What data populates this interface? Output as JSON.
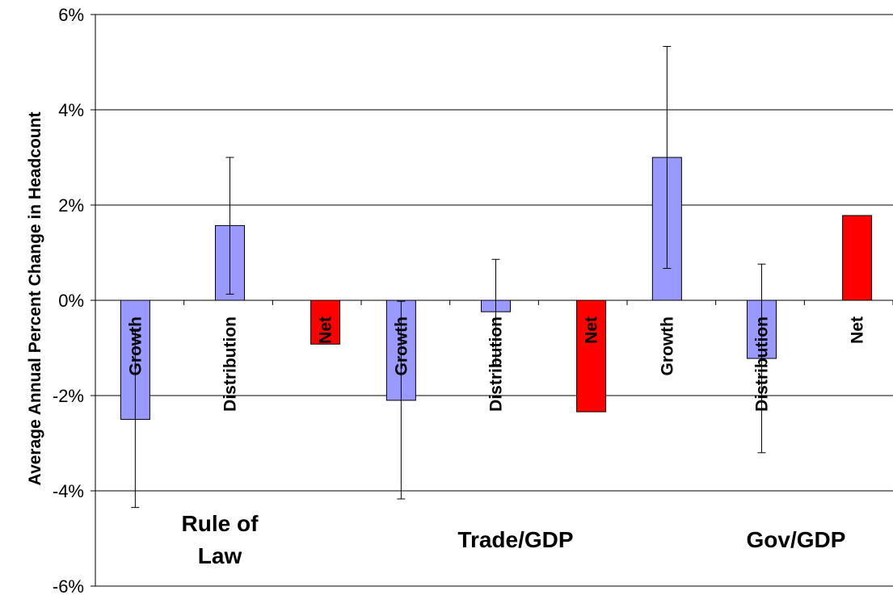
{
  "chart_data": {
    "type": "bar",
    "ylabel": "Average Annual Percent Change in Headcount",
    "ylim": [
      -6,
      6
    ],
    "yticks": [
      6,
      4,
      2,
      0,
      -2,
      -4,
      -6
    ],
    "ytick_labels": [
      "6%",
      "4%",
      "2%",
      "0%",
      "-2%",
      "-4%",
      "-6%"
    ],
    "grid": true,
    "colors": {
      "component": "#9999ff",
      "net": "#ff0000"
    },
    "groups": [
      {
        "label_lines": [
          "Rule of",
          "Law"
        ],
        "bars": [
          {
            "label": "Growth",
            "value": -2.5,
            "err_low": -4.35,
            "err_high": -0.65,
            "kind": "component"
          },
          {
            "label": "Distribution",
            "value": 1.57,
            "err_low": 0.13,
            "err_high": 3.0,
            "kind": "component"
          },
          {
            "label": "Net",
            "value": -0.92,
            "kind": "net"
          }
        ]
      },
      {
        "label_lines": [
          "Trade/GDP"
        ],
        "bars": [
          {
            "label": "Growth",
            "value": -2.1,
            "err_low": -4.17,
            "err_high": -0.02,
            "kind": "component"
          },
          {
            "label": "Distribution",
            "value": -0.24,
            "err_low": -1.35,
            "err_high": 0.86,
            "kind": "component"
          },
          {
            "label": "Net",
            "value": -2.34,
            "kind": "net"
          }
        ]
      },
      {
        "label_lines": [
          "Gov/GDP"
        ],
        "bars": [
          {
            "label": "Growth",
            "value": 3.0,
            "err_low": 0.67,
            "err_high": 5.33,
            "kind": "component"
          },
          {
            "label": "Distribution",
            "value": -1.22,
            "err_low": -3.2,
            "err_high": 0.76,
            "kind": "component"
          },
          {
            "label": "Net",
            "value": 1.78,
            "kind": "net"
          }
        ]
      }
    ]
  }
}
